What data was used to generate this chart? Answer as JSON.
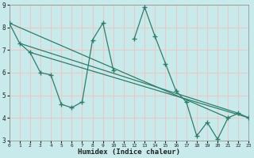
{
  "line_color": "#2e7d6b",
  "bg_color": "#c8eaea",
  "grid_color": "#e8c8c8",
  "xlabel": "Humidex (Indice chaleur)",
  "xlim": [
    0,
    23
  ],
  "ylim": [
    3,
    9
  ],
  "yticks": [
    3,
    4,
    5,
    6,
    7,
    8,
    9
  ],
  "xticks": [
    0,
    1,
    2,
    3,
    4,
    5,
    6,
    7,
    8,
    9,
    10,
    11,
    12,
    13,
    14,
    15,
    16,
    17,
    18,
    19,
    20,
    21,
    22,
    23
  ],
  "main_x": [
    0,
    1,
    2,
    3,
    4,
    5,
    6,
    7,
    8,
    9,
    10,
    12,
    13,
    14,
    15,
    16,
    17,
    18,
    19,
    20,
    21,
    22,
    23
  ],
  "main_y": [
    8.2,
    7.3,
    6.9,
    6.0,
    5.9,
    4.6,
    4.45,
    4.7,
    7.45,
    8.2,
    6.1,
    7.5,
    8.9,
    7.6,
    6.4,
    5.2,
    4.7,
    3.2,
    3.8,
    3.05,
    4.0,
    4.2,
    4.0
  ],
  "trend1_x": [
    0,
    21
  ],
  "trend1_y": [
    8.2,
    4.0
  ],
  "trend2_x": [
    1,
    22
  ],
  "trend2_y": [
    7.3,
    4.2
  ],
  "trend3_x": [
    2,
    23
  ],
  "trend3_y": [
    6.9,
    4.0
  ]
}
